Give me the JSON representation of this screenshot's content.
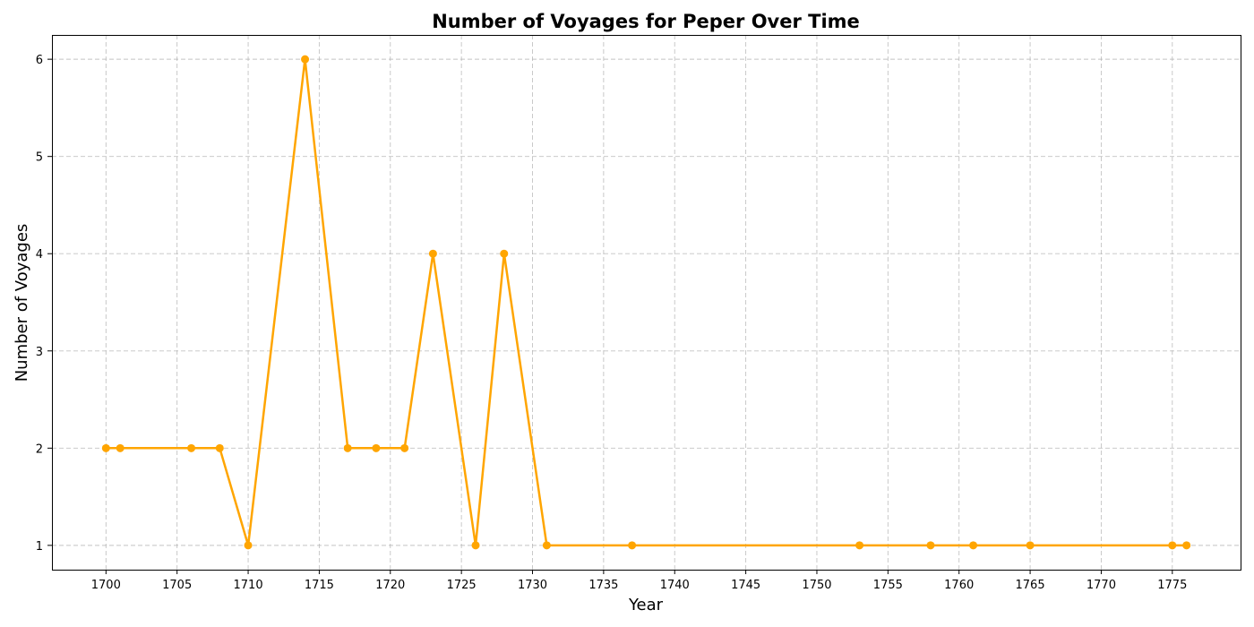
{
  "chart_data": {
    "type": "line",
    "title": "Number of Voyages for Peper Over Time",
    "xlabel": "Year",
    "ylabel": "Number of Voyages",
    "x": [
      1700,
      1701,
      1706,
      1708,
      1710,
      1714,
      1717,
      1719,
      1721,
      1723,
      1726,
      1728,
      1731,
      1737,
      1753,
      1758,
      1761,
      1765,
      1775,
      1776
    ],
    "series": [
      {
        "values": [
          2,
          2,
          2,
          2,
          1,
          6,
          2,
          2,
          2,
          4,
          1,
          4,
          1,
          1,
          1,
          1,
          1,
          1,
          1,
          1
        ],
        "color": "#FFA500",
        "marker": "circle"
      }
    ],
    "xlim": [
      1696.2,
      1779.8
    ],
    "ylim": [
      0.75,
      6.25
    ],
    "x_ticks": [
      "1700",
      "1705",
      "1710",
      "1715",
      "1720",
      "1725",
      "1730",
      "1735",
      "1740",
      "1745",
      "1750",
      "1755",
      "1760",
      "1765",
      "1770",
      "1775"
    ],
    "y_ticks": [
      "1",
      "2",
      "3",
      "4",
      "5",
      "6"
    ],
    "grid": true,
    "legend": "none"
  }
}
